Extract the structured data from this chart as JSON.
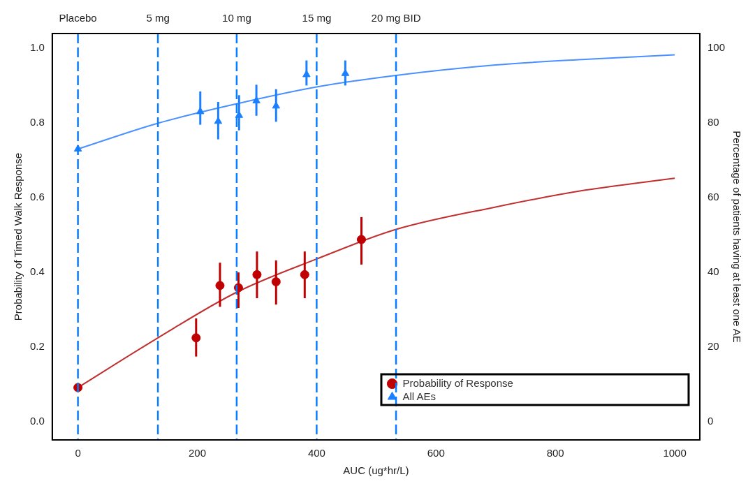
{
  "chart_data": {
    "type": "scatter",
    "xlabel": "AUC (ug*hr/L)",
    "ylabel": "Probability of Timed Walk Response",
    "y2label": "Percentage of patients having at least one AE",
    "xlim": [
      -43,
      1042
    ],
    "xticks": [
      0,
      200,
      400,
      600,
      800,
      1000
    ],
    "ylim": [
      -0.048,
      1.039
    ],
    "yticks": [
      {
        "value": 0,
        "label": "0.0"
      },
      {
        "value": 0.2,
        "label": "0.2"
      },
      {
        "value": 0.4,
        "label": "0.4"
      },
      {
        "value": 0.6,
        "label": "0.6"
      },
      {
        "value": 0.8,
        "label": "0.8"
      },
      {
        "value": 1,
        "label": "1.0"
      }
    ],
    "y2lim": [
      -4.8,
      103.9
    ],
    "y2ticks": [
      0,
      20,
      40,
      60,
      80,
      100
    ],
    "grid": false,
    "legend": "bottom right",
    "series": [
      {
        "name": "Probability of Response",
        "axis": "y",
        "color": "#c00000",
        "marker": "circle",
        "x": [
          0,
          198,
          238,
          269,
          300,
          332,
          380,
          475
        ],
        "values": [
          0.092,
          0.225,
          0.365,
          0.359,
          0.394,
          0.375,
          0.394,
          0.488
        ],
        "errors": [
          null,
          [
            0.175,
            0.277
          ],
          [
            0.308,
            0.426
          ],
          [
            0.305,
            0.4
          ],
          [
            0.331,
            0.456
          ],
          [
            0.314,
            0.432
          ],
          [
            0.331,
            0.456
          ],
          [
            0.421,
            0.548
          ]
        ]
      },
      {
        "name": "All AEs",
        "axis": "y2",
        "color": "#1a80ff",
        "marker": "triangle",
        "x": [
          0,
          205,
          235,
          270,
          299,
          332,
          383,
          448
        ],
        "values": [
          73,
          83,
          80.4,
          82,
          85.9,
          84.5,
          92.9,
          93.2
        ],
        "errors": [
          null,
          [
            79.5,
            88.4
          ],
          [
            75.6,
            85.6
          ],
          [
            78,
            87.4
          ],
          [
            81.9,
            90.2
          ],
          [
            80.3,
            89
          ],
          [
            90,
            96.7
          ],
          [
            90,
            96.7
          ]
        ]
      },
      {
        "type": "line",
        "axis": "y",
        "color": "#c03030",
        "marker": "none",
        "x": [
          0,
          134,
          266,
          400,
          533,
          700,
          850,
          1000
        ],
        "values": [
          0.092,
          0.225,
          0.347,
          0.436,
          0.515,
          0.575,
          0.62,
          0.652
        ]
      },
      {
        "type": "line",
        "axis": "y2",
        "color": "#4a90ff",
        "marker": "none",
        "x": [
          0,
          134,
          266,
          400,
          533,
          700,
          850,
          1000
        ],
        "values": [
          73,
          79.9,
          85.1,
          89.6,
          92.7,
          95.5,
          97,
          98.2
        ]
      }
    ],
    "ref_lines": [
      {
        "axis": "x",
        "value": 0,
        "label": "Placebo",
        "color": "#0a7cff",
        "line_style": "dashed"
      },
      {
        "axis": "x",
        "value": 134,
        "label": "5 mg",
        "color": "#0a7cff",
        "line_style": "dashed"
      },
      {
        "axis": "x",
        "value": 266,
        "label": "10 mg",
        "color": "#0a7cff",
        "line_style": "dashed"
      },
      {
        "axis": "x",
        "value": 400,
        "label": "15 mg",
        "color": "#0a7cff",
        "line_style": "dashed"
      },
      {
        "axis": "x",
        "value": 533,
        "label": "20 mg BID",
        "color": "#0a7cff",
        "line_style": "dashed"
      }
    ]
  }
}
